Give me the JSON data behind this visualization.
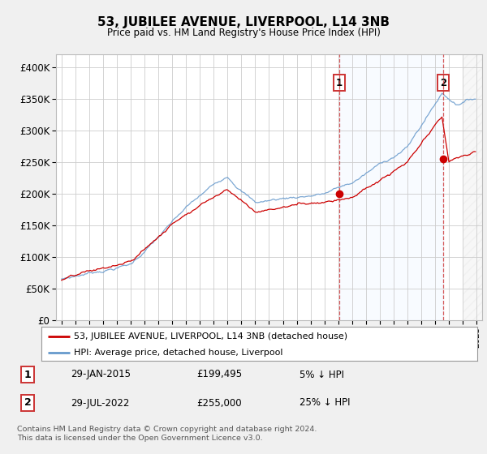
{
  "title": "53, JUBILEE AVENUE, LIVERPOOL, L14 3NB",
  "subtitle": "Price paid vs. HM Land Registry's House Price Index (HPI)",
  "bg_color": "#f0f0f0",
  "plot_bg": "#ffffff",
  "grid_color": "#cccccc",
  "line1_color": "#cc0000",
  "line2_color": "#6699cc",
  "shade_color": "#ddeeff",
  "hatch_color": "#cccccc",
  "ylim": [
    0,
    420000
  ],
  "yticks": [
    0,
    50000,
    100000,
    150000,
    200000,
    250000,
    300000,
    350000,
    400000
  ],
  "ytick_labels": [
    "£0",
    "£50K",
    "£100K",
    "£150K",
    "£200K",
    "£250K",
    "£300K",
    "£350K",
    "£400K"
  ],
  "sale1_year": 2015.08,
  "sale1_value": 199495,
  "sale2_year": 2022.58,
  "sale2_value": 255000,
  "xstart": 1995,
  "xend": 2025,
  "legend1": "53, JUBILEE AVENUE, LIVERPOOL, L14 3NB (detached house)",
  "legend2": "HPI: Average price, detached house, Liverpool",
  "ann1_label": "1",
  "ann1_date": "29-JAN-2015",
  "ann1_price": "£199,495",
  "ann1_pct": "5% ↓ HPI",
  "ann2_label": "2",
  "ann2_date": "29-JUL-2022",
  "ann2_price": "£255,000",
  "ann2_pct": "25% ↓ HPI",
  "footer": "Contains HM Land Registry data © Crown copyright and database right 2024.\nThis data is licensed under the Open Government Licence v3.0."
}
